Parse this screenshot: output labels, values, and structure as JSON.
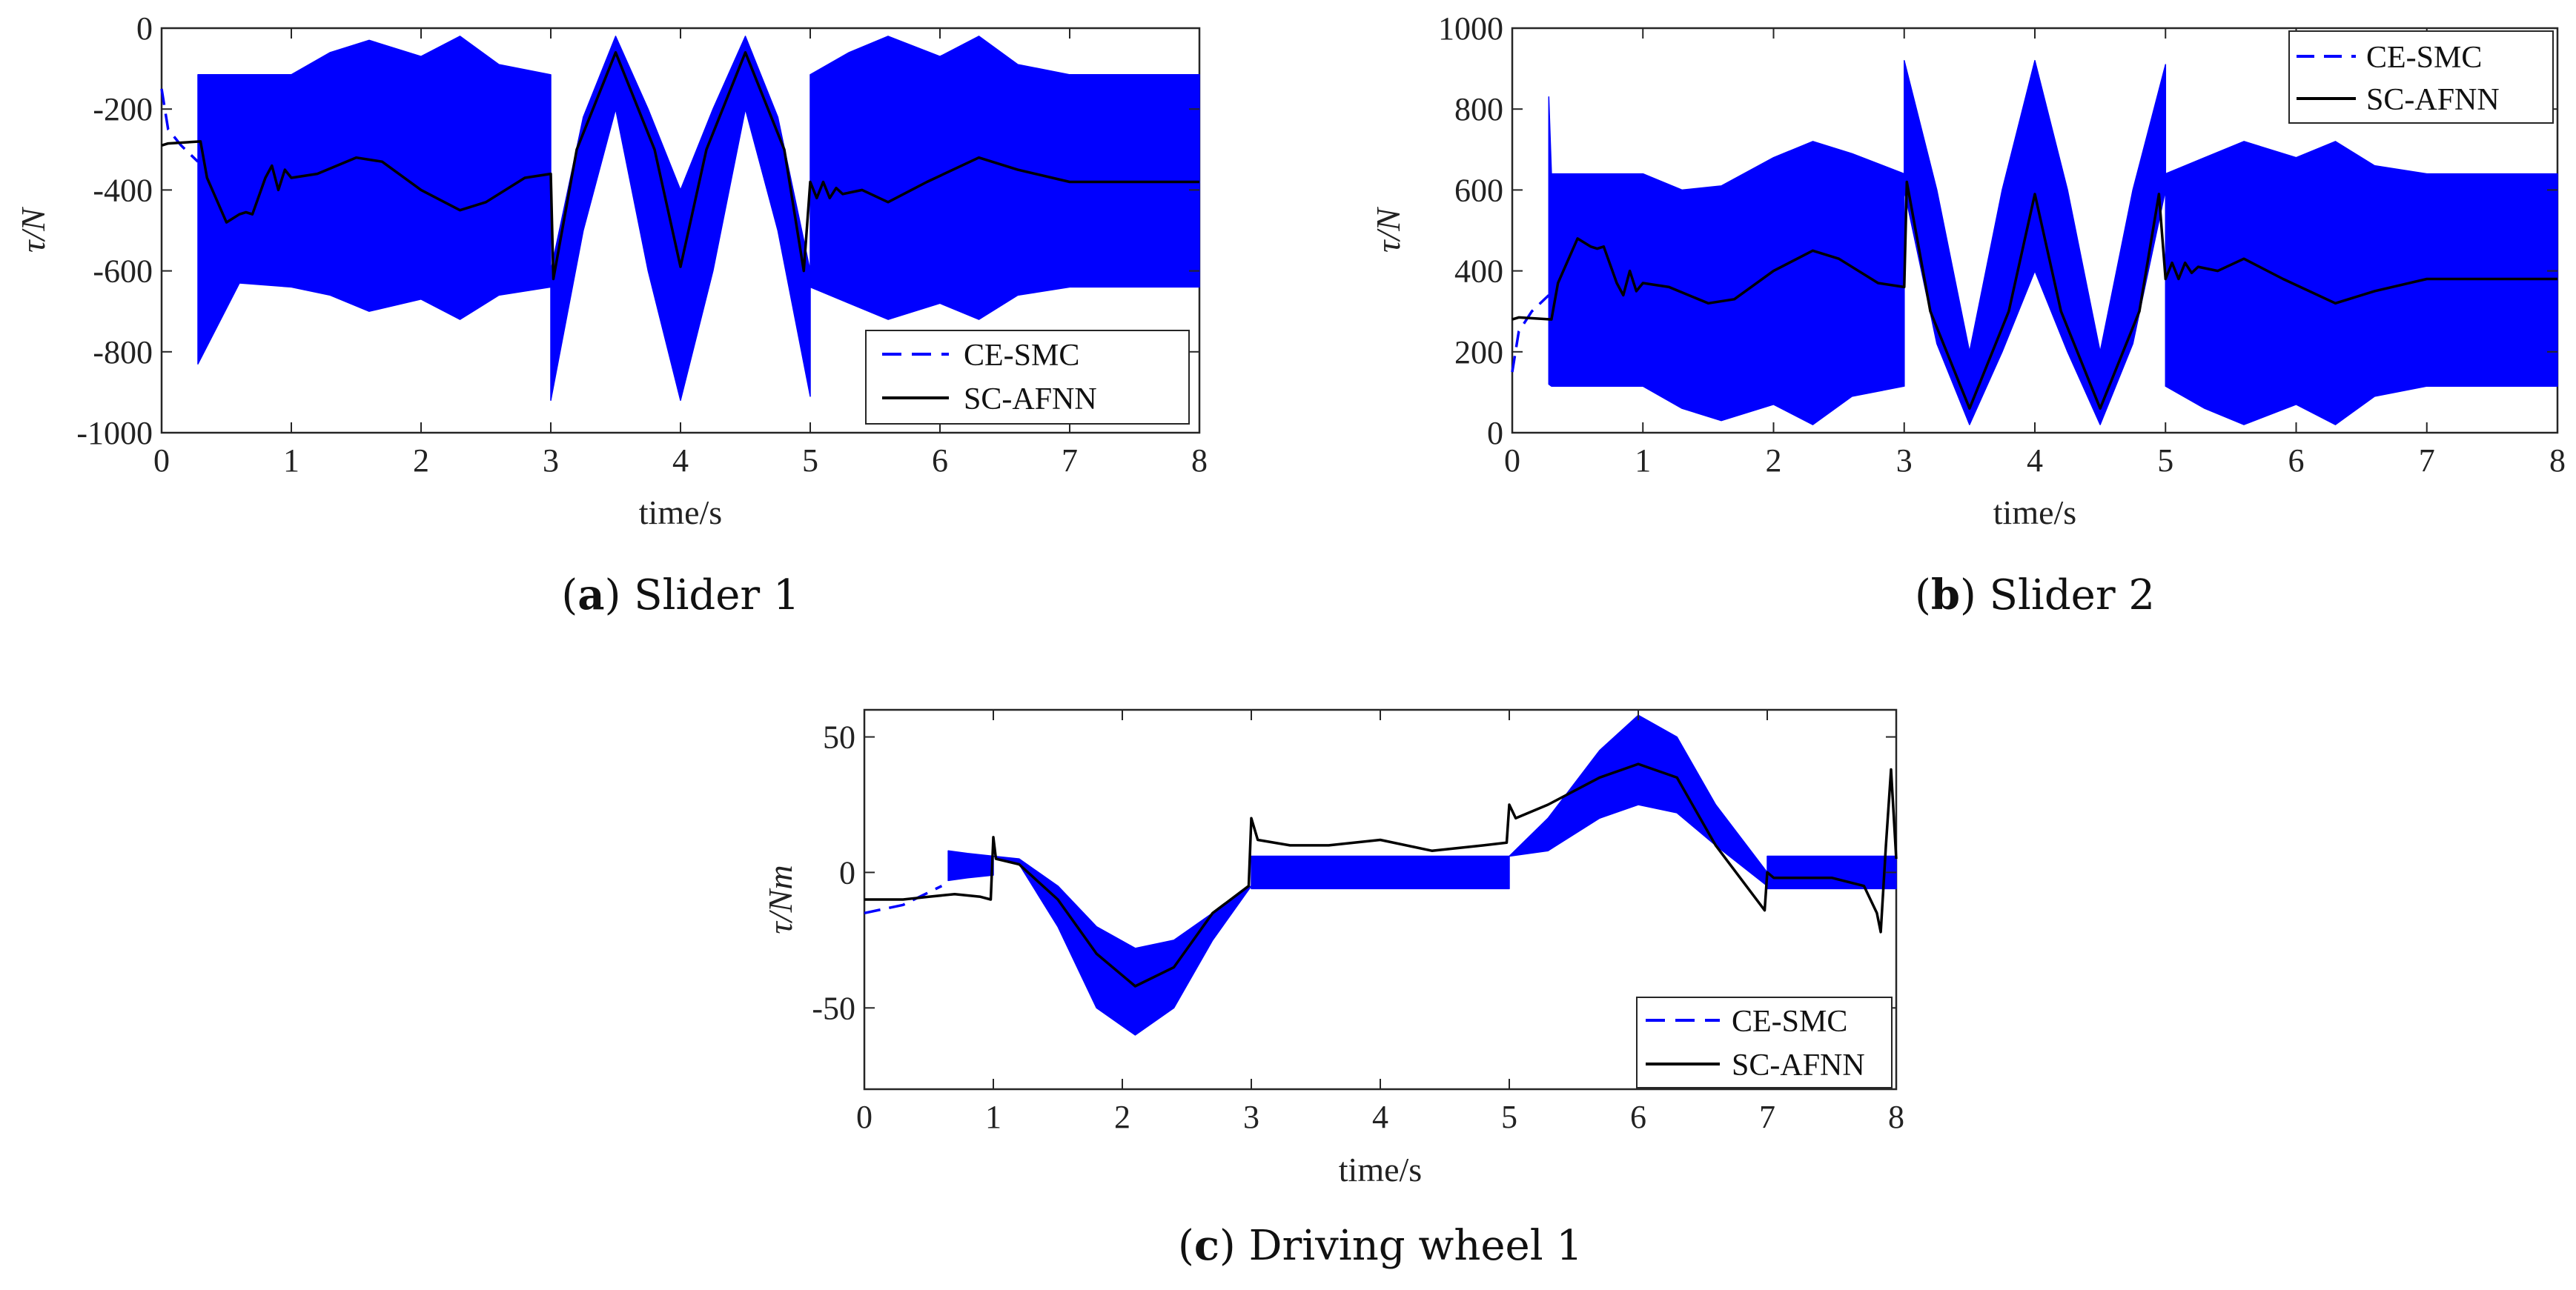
{
  "figure": {
    "subfigures": [
      {
        "label": "a",
        "caption": "Slider 1"
      },
      {
        "label": "b",
        "caption": "Slider 2"
      },
      {
        "label": "c",
        "caption": "Driving wheel 1"
      }
    ]
  },
  "colors": {
    "ce_smc": "#0000ff",
    "sc_afnn": "#000000",
    "axes": "#262626"
  },
  "chart_data": [
    {
      "id": "a",
      "type": "line",
      "title": "(a) Slider 1",
      "xlabel": "time/s",
      "ylabel": "τ/N",
      "xlim": [
        0,
        8
      ],
      "ylim": [
        -1000,
        0
      ],
      "xticks": [
        0,
        1,
        2,
        3,
        4,
        5,
        6,
        7,
        8
      ],
      "yticks": [
        -1000,
        -800,
        -600,
        -400,
        -200,
        0
      ],
      "legend": {
        "position": "bottom-right",
        "entries": [
          "CE-SMC",
          "SC-AFNN"
        ]
      },
      "series": [
        {
          "name": "CE-SMC",
          "style": "dashed",
          "color": "#0000ff",
          "x": [
            0,
            0.05,
            0.15,
            0.28
          ],
          "y": [
            -150,
            -250,
            -290,
            -330
          ],
          "band": {
            "x": [
              0.28,
              0.6,
              1.0,
              1.3,
              1.6,
              2.0,
              2.3,
              2.6,
              3.0,
              3.0,
              3.25,
              3.5,
              3.75,
              4.0,
              4.25,
              4.5,
              4.75,
              5.0,
              5.0,
              5.3,
              5.6,
              6.0,
              6.3,
              6.6,
              7.0,
              8.0
            ],
            "upper": [
              -115,
              -115,
              -115,
              -60,
              -30,
              -70,
              -20,
              -90,
              -115,
              -600,
              -220,
              -20,
              -200,
              -400,
              -200,
              -20,
              -220,
              -600,
              -115,
              -60,
              -20,
              -70,
              -20,
              -90,
              -115,
              -115
            ],
            "lower": [
              -830,
              -630,
              -640,
              -660,
              -700,
              -670,
              -720,
              -660,
              -640,
              -920,
              -500,
              -200,
              -600,
              -920,
              -600,
              -200,
              -500,
              -910,
              -640,
              -680,
              -720,
              -680,
              -720,
              -660,
              -640,
              -640
            ]
          }
        },
        {
          "name": "SC-AFNN",
          "style": "solid",
          "color": "#000000",
          "x": [
            0,
            0.05,
            0.3,
            0.35,
            0.5,
            0.6,
            0.65,
            0.7,
            0.8,
            0.85,
            0.9,
            0.95,
            1.0,
            1.2,
            1.5,
            1.7,
            2.0,
            2.3,
            2.5,
            2.8,
            3.0,
            3.02,
            3.2,
            3.5,
            3.8,
            4.0,
            4.2,
            4.5,
            4.8,
            4.95,
            5.0,
            5.05,
            5.1,
            5.15,
            5.2,
            5.25,
            5.4,
            5.6,
            5.9,
            6.3,
            6.6,
            7.0,
            8.0
          ],
          "y": [
            -290,
            -285,
            -280,
            -370,
            -480,
            -460,
            -455,
            -460,
            -370,
            -340,
            -400,
            -350,
            -370,
            -360,
            -320,
            -330,
            -400,
            -450,
            -430,
            -370,
            -360,
            -620,
            -300,
            -60,
            -300,
            -590,
            -300,
            -60,
            -300,
            -600,
            -380,
            -420,
            -380,
            -420,
            -395,
            -410,
            -400,
            -430,
            -380,
            -320,
            -350,
            -380,
            -380
          ]
        }
      ]
    },
    {
      "id": "b",
      "type": "line",
      "title": "(b) Slider 2",
      "xlabel": "time/s",
      "ylabel": "τ/N",
      "xlim": [
        0,
        8
      ],
      "ylim": [
        0,
        1000
      ],
      "xticks": [
        0,
        1,
        2,
        3,
        4,
        5,
        6,
        7,
        8
      ],
      "yticks": [
        0,
        200,
        400,
        600,
        800,
        1000
      ],
      "legend": {
        "position": "top-right",
        "entries": [
          "CE-SMC",
          "SC-AFNN"
        ]
      },
      "series": [
        {
          "name": "CE-SMC",
          "style": "dashed",
          "color": "#0000ff",
          "x": [
            0,
            0.05,
            0.15,
            0.28
          ],
          "y": [
            150,
            250,
            300,
            340
          ],
          "band": {
            "x": [
              0.28,
              0.3,
              0.6,
              1.0,
              1.3,
              1.6,
              2.0,
              2.3,
              2.6,
              3.0,
              3.0,
              3.25,
              3.5,
              3.75,
              4.0,
              4.25,
              4.5,
              4.75,
              5.0,
              5.0,
              5.3,
              5.6,
              6.0,
              6.3,
              6.6,
              7.0,
              8.0
            ],
            "upper": [
              830,
              640,
              640,
              640,
              600,
              610,
              680,
              720,
              690,
              640,
              920,
              600,
              200,
              600,
              920,
              600,
              200,
              600,
              910,
              640,
              680,
              720,
              680,
              720,
              660,
              640,
              640
            ],
            "lower": [
              120,
              115,
              115,
              115,
              60,
              30,
              70,
              20,
              90,
              115,
              600,
              220,
              20,
              200,
              400,
              200,
              20,
              220,
              600,
              115,
              60,
              20,
              70,
              20,
              90,
              115,
              115
            ]
          }
        },
        {
          "name": "SC-AFNN",
          "style": "solid",
          "color": "#000000",
          "x": [
            0,
            0.05,
            0.3,
            0.35,
            0.5,
            0.6,
            0.65,
            0.7,
            0.8,
            0.85,
            0.9,
            0.95,
            1.0,
            1.2,
            1.5,
            1.7,
            2.0,
            2.3,
            2.5,
            2.8,
            3.0,
            3.02,
            3.2,
            3.5,
            3.8,
            4.0,
            4.2,
            4.5,
            4.8,
            4.95,
            5.0,
            5.05,
            5.1,
            5.15,
            5.2,
            5.25,
            5.4,
            5.6,
            5.9,
            6.3,
            6.6,
            7.0,
            8.0
          ],
          "y": [
            280,
            285,
            280,
            370,
            480,
            460,
            455,
            460,
            370,
            340,
            400,
            350,
            370,
            360,
            320,
            330,
            400,
            450,
            430,
            370,
            360,
            620,
            300,
            60,
            300,
            590,
            300,
            60,
            300,
            590,
            380,
            420,
            380,
            420,
            395,
            410,
            400,
            430,
            380,
            320,
            350,
            380,
            380
          ]
        }
      ]
    },
    {
      "id": "c",
      "type": "line",
      "title": "(c) Driving wheel 1",
      "xlabel": "time/s",
      "ylabel": "τ/Nm",
      "xlim": [
        0,
        8
      ],
      "ylim": [
        -80,
        60
      ],
      "xticks": [
        0,
        1,
        2,
        3,
        4,
        5,
        6,
        7,
        8
      ],
      "yticks": [
        -50,
        0,
        50
      ],
      "legend": {
        "position": "bottom-right",
        "entries": [
          "CE-SMC",
          "SC-AFNN"
        ]
      },
      "series": [
        {
          "name": "CE-SMC",
          "style": "dashed",
          "color": "#0000ff",
          "x": [
            0,
            0.3,
            0.6
          ],
          "y": [
            -15,
            -12,
            -5
          ],
          "band": {
            "x": [
              0.65,
              0.8,
              1.0,
              1.0,
              1.2,
              1.5,
              1.8,
              2.1,
              2.4,
              2.7,
              3.0,
              3.0,
              5.0,
              5.0,
              5.3,
              5.7,
              6.0,
              6.3,
              6.6,
              7.0,
              7.0,
              8.0
            ],
            "upper": [
              8,
              7,
              6,
              6,
              5,
              -5,
              -20,
              -28,
              -25,
              -15,
              -5,
              6,
              6,
              6,
              20,
              45,
              58,
              50,
              25,
              0,
              6,
              6
            ],
            "lower": [
              -3,
              -2,
              -1,
              6,
              3,
              -20,
              -50,
              -60,
              -50,
              -25,
              -5,
              -6,
              -6,
              6,
              8,
              20,
              25,
              22,
              10,
              -5,
              -6,
              -6
            ]
          }
        },
        {
          "name": "SC-AFNN",
          "style": "solid",
          "color": "#000000",
          "x": [
            0,
            0.3,
            0.5,
            0.7,
            0.9,
            0.98,
            1.0,
            1.02,
            1.2,
            1.5,
            1.8,
            2.1,
            2.4,
            2.7,
            2.98,
            3.0,
            3.05,
            3.3,
            3.6,
            4.0,
            4.4,
            4.8,
            4.98,
            5.0,
            5.05,
            5.3,
            5.7,
            6.0,
            6.3,
            6.6,
            6.98,
            7.0,
            7.05,
            7.5,
            7.75,
            7.85,
            7.88,
            7.92,
            7.96,
            8.0
          ],
          "y": [
            -10,
            -10,
            -9,
            -8,
            -9,
            -10,
            13,
            5,
            3,
            -10,
            -30,
            -42,
            -35,
            -15,
            -5,
            20,
            12,
            10,
            10,
            12,
            8,
            10,
            11,
            25,
            20,
            25,
            35,
            40,
            35,
            10,
            -14,
            0,
            -2,
            -2,
            -5,
            -15,
            -22,
            10,
            38,
            5
          ]
        }
      ]
    }
  ]
}
